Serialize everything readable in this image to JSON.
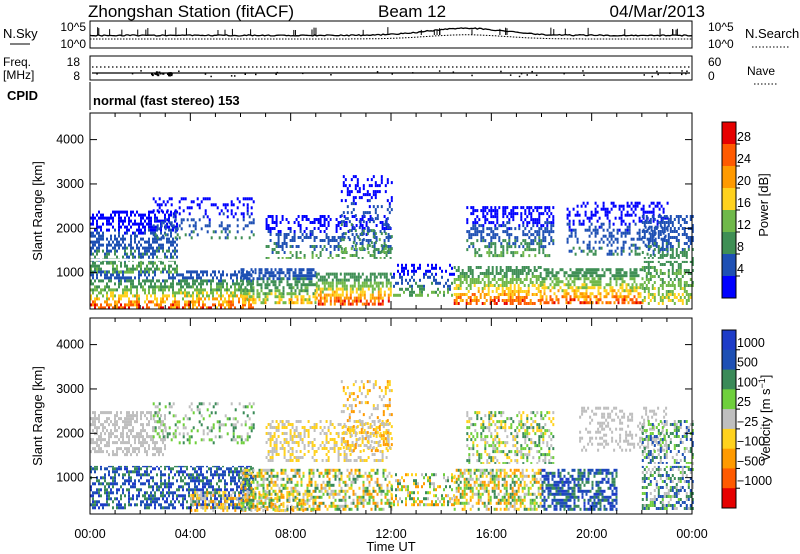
{
  "header": {
    "station": "Zhongshan Station (fitACF)",
    "beam": "Beam 12",
    "date": "04/Mar/2013"
  },
  "noise_panel": {
    "left_label": "N.Sky",
    "right_label": "N.Search",
    "left_ticks": [
      "10^5",
      "10^0"
    ],
    "right_ticks": [
      "10^5",
      "10^0"
    ]
  },
  "freq_panel": {
    "left_label_1": "Freq.",
    "left_label_2": "[MHz]",
    "right_label": "Nave",
    "left_ticks": [
      "18",
      "8"
    ],
    "right_ticks": [
      "60",
      "0"
    ]
  },
  "cpid": {
    "label": "CPID",
    "text": "normal (fast stereo) 153"
  },
  "colors": {
    "power": [
      "#0000ff",
      "#1e50b4",
      "#3f8f55",
      "#6fb84a",
      "#ffd21e",
      "#ff9a00",
      "#ff5a00",
      "#e60000"
    ],
    "velocity": [
      "#1e3cc8",
      "#1e50b4",
      "#3a8a58",
      "#6fcf3c",
      "#bfbfbf",
      "#ffd21e",
      "#ff9a00",
      "#ff5a00",
      "#e60000"
    ]
  },
  "chart_data": [
    {
      "type": "heatmap",
      "quantity": "Power",
      "ylabel": "Slant Range [km]",
      "y_ticks": [
        1000,
        2000,
        3000,
        4000
      ],
      "ylim": [
        180,
        4600
      ],
      "xlim": [
        0,
        24
      ],
      "colorbar": {
        "label": "Power [dB]",
        "tick_labels": [
          "4",
          "8",
          "12",
          "16",
          "20",
          "24",
          "28"
        ],
        "levels": 8
      },
      "blobs": [
        {
          "t": [
            0.0,
            6.5
          ],
          "r": [
            200,
            1050
          ],
          "d": 0.55,
          "lv": [
            1,
            7
          ]
        },
        {
          "t": [
            0.0,
            3.5
          ],
          "r": [
            1000,
            2400
          ],
          "d": 0.5,
          "lv": [
            0,
            3
          ]
        },
        {
          "t": [
            2.5,
            6.5
          ],
          "r": [
            1800,
            2700
          ],
          "d": 0.25,
          "lv": [
            0,
            2
          ]
        },
        {
          "t": [
            6.0,
            9.0
          ],
          "r": [
            300,
            1100
          ],
          "d": 0.6,
          "lv": [
            1,
            5
          ]
        },
        {
          "t": [
            9.0,
            12.0
          ],
          "r": [
            300,
            1000
          ],
          "d": 0.6,
          "lv": [
            2,
            7
          ]
        },
        {
          "t": [
            7.0,
            12.0
          ],
          "r": [
            1300,
            2300
          ],
          "d": 0.35,
          "lv": [
            0,
            3
          ]
        },
        {
          "t": [
            10.0,
            12.0
          ],
          "r": [
            1500,
            3200
          ],
          "d": 0.25,
          "lv": [
            0,
            3
          ]
        },
        {
          "t": [
            12.0,
            14.5
          ],
          "r": [
            500,
            1200
          ],
          "d": 0.35,
          "lv": [
            0,
            3
          ]
        },
        {
          "t": [
            14.5,
            18.0
          ],
          "r": [
            300,
            1150
          ],
          "d": 0.6,
          "lv": [
            2,
            7
          ]
        },
        {
          "t": [
            15.0,
            18.5
          ],
          "r": [
            1350,
            2500
          ],
          "d": 0.45,
          "lv": [
            0,
            3
          ]
        },
        {
          "t": [
            18.0,
            22.0
          ],
          "r": [
            300,
            1100
          ],
          "d": 0.6,
          "lv": [
            2,
            7
          ]
        },
        {
          "t": [
            19.0,
            23.0
          ],
          "r": [
            1400,
            2600
          ],
          "d": 0.3,
          "lv": [
            0,
            2
          ]
        },
        {
          "t": [
            22.0,
            24.0
          ],
          "r": [
            300,
            2300
          ],
          "d": 0.45,
          "lv": [
            1,
            4
          ]
        }
      ]
    },
    {
      "type": "heatmap",
      "quantity": "Velocity",
      "ylabel": "Slant Range [km]",
      "y_ticks": [
        1000,
        2000,
        3000,
        4000
      ],
      "ylim": [
        180,
        4600
      ],
      "xlim": [
        0,
        24
      ],
      "xlabel": "Time UT",
      "x_ticks": [
        "00:00",
        "04:00",
        "08:00",
        "12:00",
        "16:00",
        "20:00",
        "00:00"
      ],
      "x_tick_values": [
        0,
        4,
        8,
        12,
        16,
        20,
        24
      ],
      "colorbar": {
        "label": "Velocity [m s^-1]",
        "tick_labels": [
          "1000",
          "500",
          "100",
          "25",
          "−25",
          "−100",
          "−500",
          "−1000"
        ],
        "levels": 9
      },
      "blobs": [
        {
          "t": [
            0.0,
            6.5
          ],
          "r": [
            300,
            1300
          ],
          "d": 0.55,
          "lv": [
            0,
            2
          ]
        },
        {
          "t": [
            0.0,
            3.0
          ],
          "r": [
            1500,
            2500
          ],
          "d": 0.45,
          "lv": [
            4,
            4
          ]
        },
        {
          "t": [
            2.5,
            6.5
          ],
          "r": [
            1800,
            2700
          ],
          "d": 0.25,
          "lv": [
            2,
            4
          ]
        },
        {
          "t": [
            4.0,
            9.0
          ],
          "r": [
            250,
            700
          ],
          "d": 0.45,
          "lv": [
            4,
            6
          ]
        },
        {
          "t": [
            6.0,
            12.0
          ],
          "r": [
            300,
            1200
          ],
          "d": 0.5,
          "lv": [
            2,
            6
          ]
        },
        {
          "t": [
            7.0,
            12.0
          ],
          "r": [
            1400,
            2300
          ],
          "d": 0.4,
          "lv": [
            4,
            5
          ]
        },
        {
          "t": [
            10.0,
            12.0
          ],
          "r": [
            1600,
            3200
          ],
          "d": 0.25,
          "lv": [
            4,
            6
          ]
        },
        {
          "t": [
            12.0,
            14.5
          ],
          "r": [
            400,
            1100
          ],
          "d": 0.35,
          "lv": [
            2,
            6
          ]
        },
        {
          "t": [
            14.5,
            18.0
          ],
          "r": [
            300,
            1200
          ],
          "d": 0.55,
          "lv": [
            2,
            6
          ]
        },
        {
          "t": [
            15.0,
            18.5
          ],
          "r": [
            1300,
            2500
          ],
          "d": 0.4,
          "lv": [
            2,
            5
          ]
        },
        {
          "t": [
            18.0,
            21.0
          ],
          "r": [
            300,
            1200
          ],
          "d": 0.6,
          "lv": [
            0,
            2
          ]
        },
        {
          "t": [
            19.5,
            23.0
          ],
          "r": [
            1600,
            2600
          ],
          "d": 0.3,
          "lv": [
            4,
            4
          ]
        },
        {
          "t": [
            22.0,
            24.0
          ],
          "r": [
            300,
            2300
          ],
          "d": 0.45,
          "lv": [
            1,
            4
          ]
        }
      ]
    }
  ]
}
